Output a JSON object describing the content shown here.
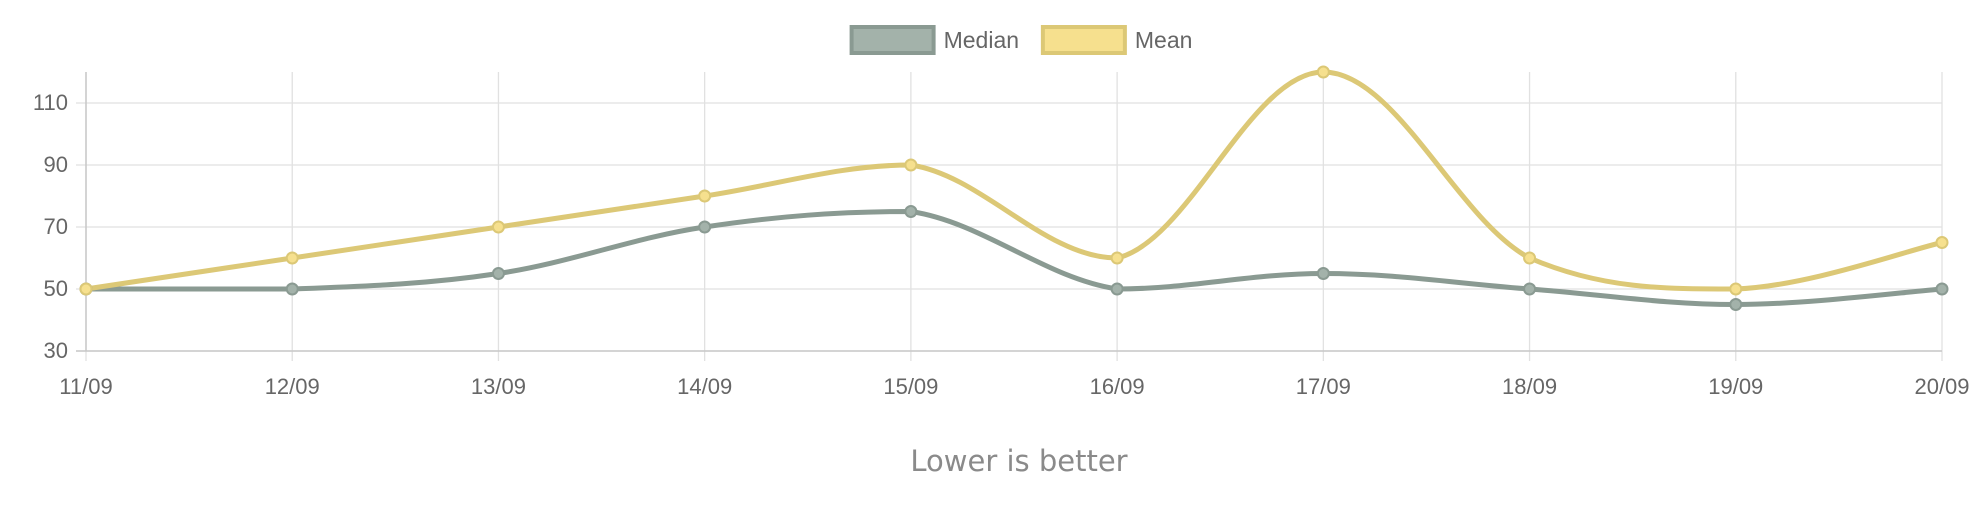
{
  "chart_data": {
    "type": "line",
    "x": [
      "11/09",
      "12/09",
      "13/09",
      "14/09",
      "15/09",
      "16/09",
      "17/09",
      "18/09",
      "19/09",
      "20/09"
    ],
    "series": [
      {
        "name": "Median",
        "values": [
          50,
          50,
          55,
          70,
          75,
          50,
          55,
          50,
          45,
          50
        ],
        "color": "#8a9a92",
        "fill": "#a3b2aa"
      },
      {
        "name": "Mean",
        "values": [
          50,
          60,
          70,
          80,
          90,
          60,
          120,
          60,
          50,
          65
        ],
        "color": "#dcc876",
        "fill": "#f6e08e"
      }
    ],
    "y_ticks": [
      30,
      50,
      70,
      90,
      110
    ],
    "ylim": [
      30,
      120
    ],
    "grid": true,
    "legend_position": "top-center",
    "caption": "Lower is better"
  }
}
